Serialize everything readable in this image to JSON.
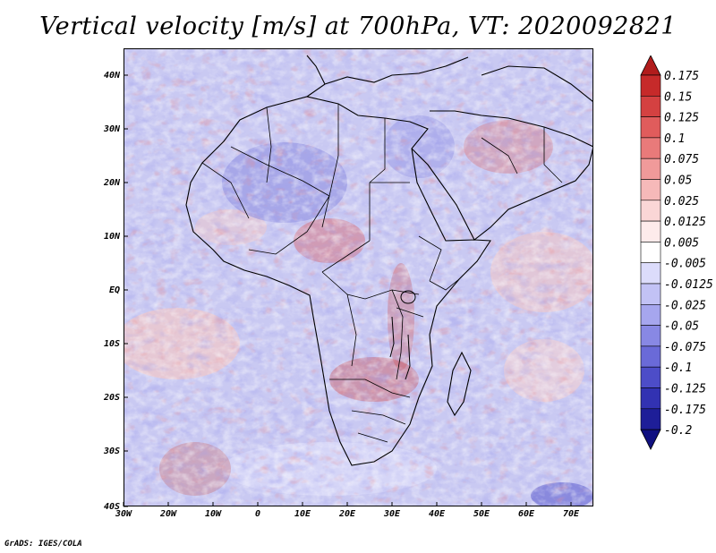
{
  "title": "Vertical velocity [m/s] at 700hPa, VT: 2020092821",
  "credit": "GrADS: IGES/COLA",
  "map": {
    "lat_labels": [
      "40N",
      "30N",
      "20N",
      "10N",
      "EQ",
      "10S",
      "20S",
      "30S",
      "40S"
    ],
    "lon_labels": [
      "30W",
      "20W",
      "10W",
      "0",
      "10E",
      "20E",
      "30E",
      "40E",
      "50E",
      "60E",
      "70E"
    ],
    "lat_range": [
      -40,
      45
    ],
    "lon_range": [
      -30,
      75
    ]
  },
  "legend": {
    "levels": [
      "0.175",
      "0.15",
      "0.125",
      "0.1",
      "0.075",
      "0.05",
      "0.025",
      "0.0125",
      "0.005",
      "-0.005",
      "-0.0125",
      "-0.025",
      "-0.05",
      "-0.075",
      "-0.1",
      "-0.125",
      "-0.175",
      "-0.2"
    ],
    "colors": [
      "#b11c1c",
      "#c62a2a",
      "#d44141",
      "#e05c5c",
      "#e97a7a",
      "#f09a9a",
      "#f6b9b9",
      "#fad6d6",
      "#fdebeb",
      "#ffffff",
      "#dcdcfb",
      "#c2c2f5",
      "#a6a6ee",
      "#8888e4",
      "#6a6ad8",
      "#4d4dc8",
      "#3232b2",
      "#1e1e98",
      "#101080"
    ]
  }
}
